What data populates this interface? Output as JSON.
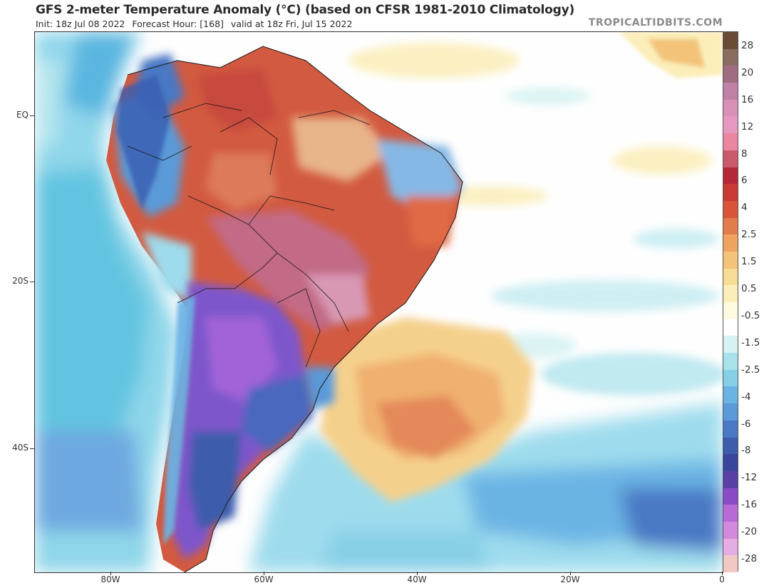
{
  "header": {
    "title": "GFS 2-meter Temperature Anomaly (°C) (based on CFSR 1981-2010 Climatology)",
    "init": "Init: 18z Jul 08 2022",
    "forecast_hour": "Forecast Hour: [168]",
    "valid": "valid at 18z Fri, Jul 15 2022",
    "brand": "TROPICALTIDBITS.COM"
  },
  "axes": {
    "lat_labels": [
      "EQ",
      "20S",
      "40S"
    ],
    "lon_labels": [
      "80W",
      "60W",
      "40W",
      "20W",
      "0"
    ]
  },
  "colorbar": {
    "labels": [
      "28",
      "20",
      "16",
      "12",
      "8",
      "6",
      "4",
      "2.5",
      "1.5",
      "0.5",
      "-0.5",
      "-1.5",
      "-2.5",
      "-4",
      "-6",
      "-8",
      "-12",
      "-16",
      "-20",
      "-28"
    ],
    "colors": [
      "#6b4a36",
      "#8a6d60",
      "#a06c80",
      "#bf82a6",
      "#d890b4",
      "#e698c0",
      "#ea86a0",
      "#c85a6c",
      "#b4283a",
      "#c93a32",
      "#d8553a",
      "#e27c4c",
      "#eea460",
      "#f3c37a",
      "#f7dc95",
      "#fbeeb8",
      "#fffbe0",
      "#ffffff",
      "#d6f2f2",
      "#a8e2ea",
      "#86cfe6",
      "#6ab4e4",
      "#5a9ad8",
      "#4a78c4",
      "#3d5cac",
      "#3a469c",
      "#5a3fa4",
      "#8a4cc4",
      "#b86ad6",
      "#d28adc",
      "#e4aee4",
      "#f2c8c4"
    ],
    "high_color": "#5a3b28",
    "low_color": "#f4d4cc"
  },
  "map": {
    "background": "#fefefe",
    "ocean_cool": "#8fd6ea",
    "land_warm": "#d0553c",
    "land_hot": "#c98aa8",
    "land_cold": "#8a4cc4",
    "ocean_warm": "#f3c07c"
  }
}
